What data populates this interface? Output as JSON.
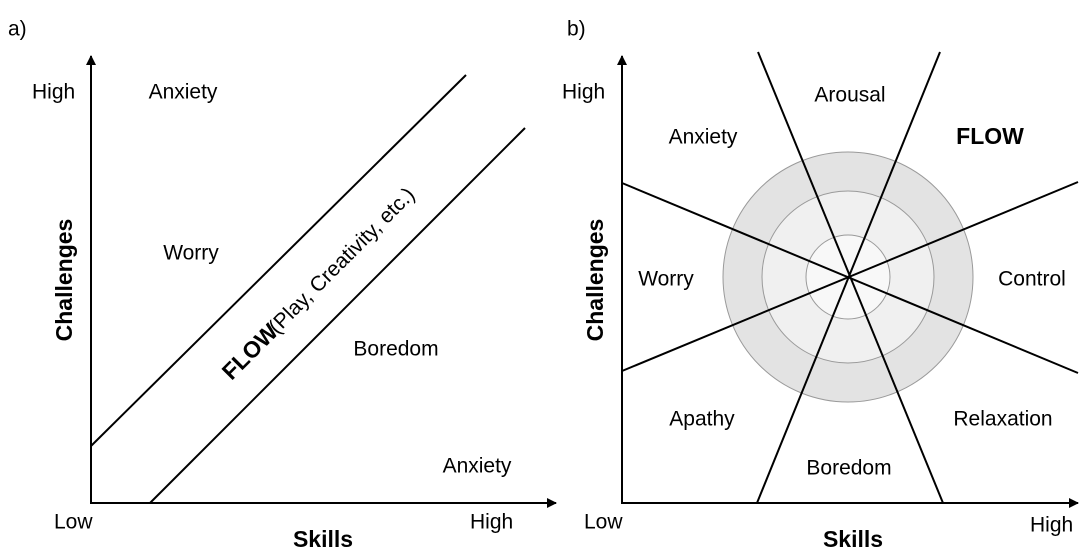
{
  "panel_a": {
    "label": "a)",
    "y_axis": "Challenges",
    "x_axis": "Skills",
    "y_high": "High",
    "x_low": "Low",
    "x_high": "High",
    "regions": [
      "Anxiety",
      "Worry",
      "Boredom",
      "Anxiety"
    ],
    "flow_label": "FLOW",
    "flow_note": "(Play, Creativity, etc.)"
  },
  "panel_b": {
    "label": "b)",
    "y_axis": "Challenges",
    "x_axis": "Skills",
    "y_high": "High",
    "x_low": "Low",
    "x_high": "High",
    "regions": [
      "Arousal",
      "FLOW",
      "Anxiety",
      "Worry",
      "Control",
      "Apathy",
      "Relaxation",
      "Boredom"
    ]
  }
}
